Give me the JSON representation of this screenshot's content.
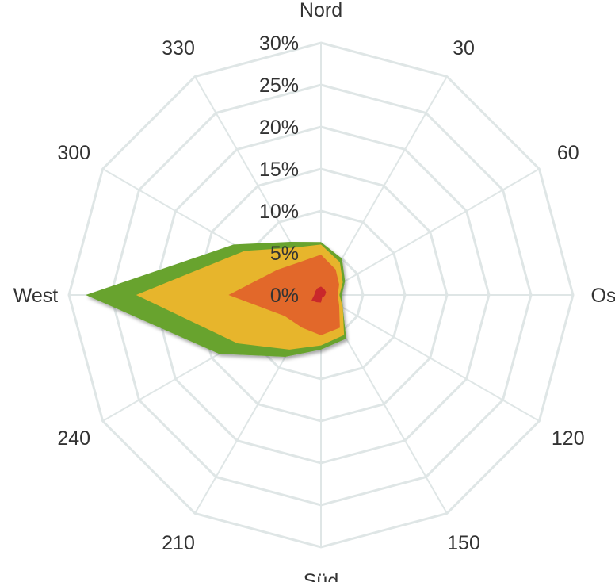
{
  "chart_data": {
    "type": "radar",
    "subtype": "wind-rose",
    "directions": [
      "Nord",
      "30",
      "60",
      "Ost",
      "120",
      "150",
      "Süd",
      "210",
      "240",
      "West",
      "300",
      "330"
    ],
    "angles_deg": [
      0,
      30,
      60,
      90,
      120,
      150,
      180,
      210,
      240,
      270,
      300,
      330
    ],
    "radial_ticks": [
      "0%",
      "5%",
      "10%",
      "15%",
      "20%",
      "25%",
      "30%"
    ],
    "radial_tick_values": [
      0,
      5,
      10,
      15,
      20,
      25,
      30
    ],
    "rmax": 30,
    "stacked": true,
    "series": [
      {
        "color": "#68a32e",
        "values": [
          6.3,
          5.0,
          3.3,
          2.5,
          3.0,
          6.0,
          6.5,
          8.5,
          14.0,
          28.0,
          12.0,
          7.3
        ]
      },
      {
        "color": "#e7b52c",
        "values": [
          6.0,
          4.5,
          3.0,
          2.2,
          3.0,
          5.5,
          6.0,
          7.5,
          11.5,
          22.0,
          10.5,
          6.5
        ]
      },
      {
        "color": "#e2682a",
        "values": [
          4.8,
          3.5,
          2.5,
          2.0,
          2.5,
          4.5,
          4.8,
          4.5,
          5.0,
          11.0,
          6.0,
          4.6
        ]
      },
      {
        "color": "#c9282b",
        "values": [
          1.0,
          0.8,
          0.7,
          0.5,
          0.4,
          0.3,
          0.9,
          1.0,
          1.3,
          0.8,
          0.8,
          0.9
        ]
      }
    ]
  }
}
